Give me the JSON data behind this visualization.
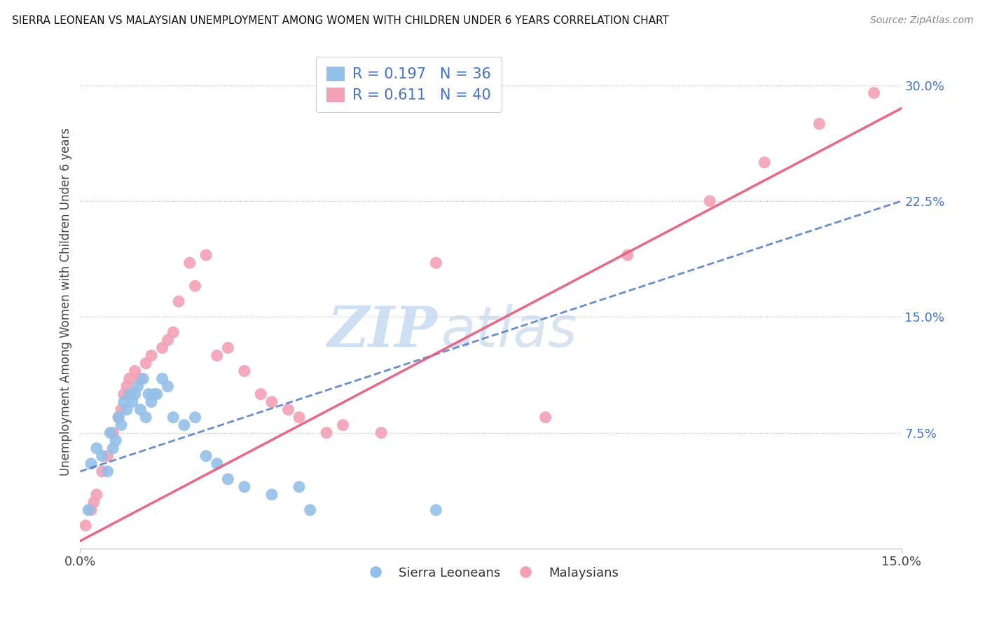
{
  "title": "SIERRA LEONEAN VS MALAYSIAN UNEMPLOYMENT AMONG WOMEN WITH CHILDREN UNDER 6 YEARS CORRELATION CHART",
  "source": "Source: ZipAtlas.com",
  "ylabel": "Unemployment Among Women with Children Under 6 years",
  "xlim": [
    0,
    15
  ],
  "ylim": [
    0,
    32
  ],
  "yticks": [
    0,
    7.5,
    15.0,
    22.5,
    30.0
  ],
  "ytick_labels": [
    "",
    "7.5%",
    "15.0%",
    "22.5%",
    "30.0%"
  ],
  "xtick_labels": [
    "0.0%",
    "15.0%"
  ],
  "legend_label1": "Sierra Leoneans",
  "legend_label2": "Malaysians",
  "blue_color": "#92C0E8",
  "pink_color": "#F4A0B5",
  "blue_line_color": "#4472C4",
  "pink_line_color": "#E8587A",
  "watermark_zip": "ZIP",
  "watermark_atlas": "atlas",
  "blue_dots_x": [
    0.15,
    0.2,
    0.3,
    0.4,
    0.5,
    0.55,
    0.6,
    0.65,
    0.7,
    0.75,
    0.8,
    0.85,
    0.9,
    0.95,
    1.0,
    1.05,
    1.1,
    1.15,
    1.2,
    1.25,
    1.3,
    1.35,
    1.4,
    1.5,
    1.6,
    1.7,
    1.9,
    2.1,
    2.3,
    2.5,
    2.7,
    3.0,
    3.5,
    4.0,
    4.2,
    6.5
  ],
  "blue_dots_y": [
    2.5,
    5.5,
    6.5,
    6.0,
    5.0,
    7.5,
    6.5,
    7.0,
    8.5,
    8.0,
    9.5,
    9.0,
    10.0,
    9.5,
    10.0,
    10.5,
    9.0,
    11.0,
    8.5,
    10.0,
    9.5,
    10.0,
    10.0,
    11.0,
    10.5,
    8.5,
    8.0,
    8.5,
    6.0,
    5.5,
    4.5,
    4.0,
    3.5,
    4.0,
    2.5,
    2.5
  ],
  "pink_dots_x": [
    0.1,
    0.2,
    0.25,
    0.3,
    0.4,
    0.5,
    0.6,
    0.7,
    0.75,
    0.8,
    0.85,
    0.9,
    1.0,
    1.1,
    1.2,
    1.3,
    1.5,
    1.6,
    1.7,
    1.8,
    2.0,
    2.1,
    2.3,
    2.5,
    2.7,
    3.0,
    3.3,
    3.5,
    3.8,
    4.0,
    4.5,
    4.8,
    5.5,
    6.5,
    8.5,
    10.0,
    11.5,
    12.5,
    13.5,
    14.5
  ],
  "pink_dots_y": [
    1.5,
    2.5,
    3.0,
    3.5,
    5.0,
    6.0,
    7.5,
    8.5,
    9.0,
    10.0,
    10.5,
    11.0,
    11.5,
    11.0,
    12.0,
    12.5,
    13.0,
    13.5,
    14.0,
    16.0,
    18.5,
    17.0,
    19.0,
    12.5,
    13.0,
    11.5,
    10.0,
    9.5,
    9.0,
    8.5,
    7.5,
    8.0,
    7.5,
    18.5,
    8.5,
    19.0,
    22.5,
    25.0,
    27.5,
    29.5
  ],
  "blue_trend_x0": 0,
  "blue_trend_y0": 5.0,
  "blue_trend_x1": 15,
  "blue_trend_y1": 22.5,
  "pink_trend_x0": 0,
  "pink_trend_y0": 0.5,
  "pink_trend_x1": 15,
  "pink_trend_y1": 28.5
}
